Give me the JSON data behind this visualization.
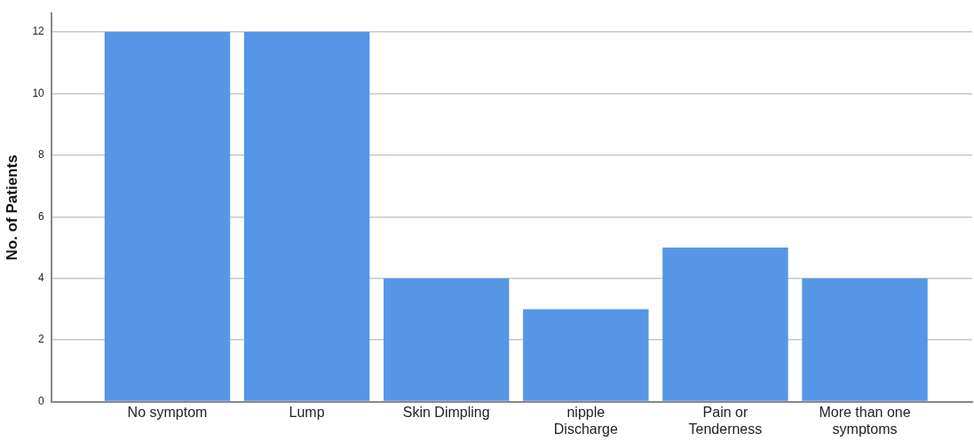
{
  "chart_data": {
    "type": "bar",
    "ylabel": "No. of Patients",
    "categories": [
      "No symptom",
      "Lump",
      "Skin Dimpling",
      "nipple Discharge",
      "Pain or Tenderness",
      "More than one symptoms"
    ],
    "values": [
      12,
      12,
      4,
      3,
      5,
      4
    ],
    "color": "#5596e6",
    "ylim": [
      0,
      12.6
    ],
    "yticks": [
      0,
      2,
      4,
      6,
      8,
      10,
      12
    ],
    "grid": "y",
    "legend": false
  }
}
